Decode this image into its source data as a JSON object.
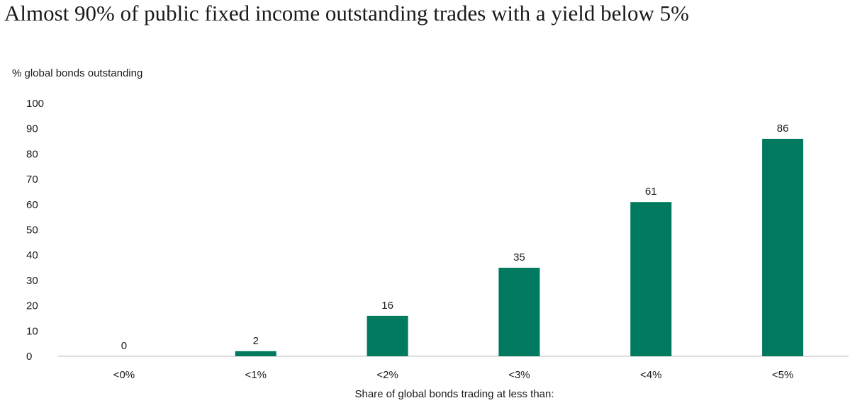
{
  "chart_data": {
    "type": "bar",
    "title": "Almost 90% of public fixed income outstanding trades with a yield below 5%",
    "ylabel": "% global bonds outstanding",
    "xlabel": "Share of global bonds trading at less than:",
    "categories": [
      "<0%",
      "<1%",
      "<2%",
      "<3%",
      "<4%",
      "<5%"
    ],
    "values": [
      0,
      2,
      16,
      35,
      61,
      86
    ],
    "data_labels": [
      "0",
      "2",
      "16",
      "35",
      "61",
      "86"
    ],
    "ylim": [
      0,
      100
    ],
    "yticks": [
      0,
      10,
      20,
      30,
      40,
      50,
      60,
      70,
      80,
      90,
      100
    ],
    "grid": false,
    "legend": "none",
    "bar_color": "#007A5E",
    "axis_line_color": "#bfbfbf"
  }
}
